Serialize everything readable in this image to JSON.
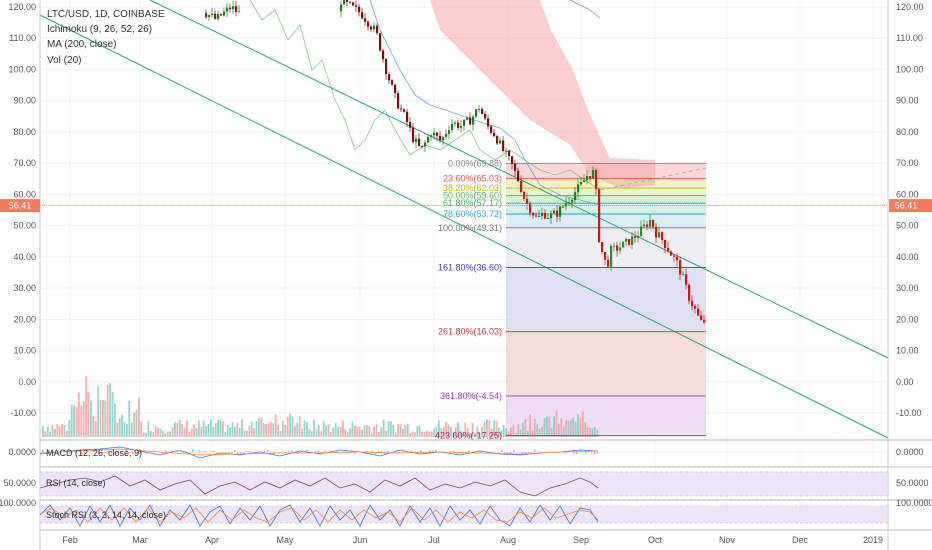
{
  "legend": {
    "symbol": "LTC/USD, 1D, COINBASE",
    "ichimoku": "Ichimoku (9, 26, 52, 26)",
    "ma": "MA (200, close)",
    "vol": "Vol (20)"
  },
  "panes": {
    "macd": "MACD (12, 26, close, 9)",
    "rsi": "RSI (14, close)",
    "stoch": "Stoch RSI (3, 3, 14, 14, close)"
  },
  "pane_ticks": {
    "macd": "0.0000",
    "rsi": "50.0000",
    "stoch": "100.0000"
  },
  "current_price": "56.41",
  "colors": {
    "up": "#26a69a",
    "down": "#ef5350",
    "channel": "#29a37e",
    "cloud": "#f4a6a6",
    "rsi": "#7b3f99",
    "price_line": "#f47c5a"
  },
  "chart_data": {
    "type": "candlestick",
    "symbol": "LTC/USD",
    "timeframe": "1D",
    "exchange": "COINBASE",
    "y_ticks": [
      "120.00",
      "110.00",
      "100.00",
      "90.00",
      "80.00",
      "70.00",
      "60.00",
      "50.00",
      "40.00",
      "30.00",
      "20.00",
      "10.00",
      "0.00",
      "-10.00"
    ],
    "ylim": [
      -17.7,
      122.5
    ],
    "x_ticks": [
      "Feb",
      "Mar",
      "Apr",
      "May",
      "Jun",
      "Jul",
      "Aug",
      "Sep",
      "Oct",
      "Nov",
      "Dec",
      "2019"
    ],
    "fib_levels": [
      {
        "label": "0.00%(69.88)",
        "value": 69.88,
        "color": "#888888"
      },
      {
        "label": "23.60%(65.03)",
        "value": 65.03,
        "color": "#d9534f"
      },
      {
        "label": "38.20%(62.03)",
        "value": 62.03,
        "color": "#b8b800"
      },
      {
        "label": "50.00%(59.60)",
        "value": 59.6,
        "color": "#5cb85c"
      },
      {
        "label": "61.80%(57.17)",
        "value": 57.17,
        "color": "#3aa86a"
      },
      {
        "label": "78.60%(53.72)",
        "value": 53.72,
        "color": "#2aa0c8"
      },
      {
        "label": "100.00%(49.31)",
        "value": 49.31,
        "color": "#777777"
      },
      {
        "label": "161.80%(36.60)",
        "value": 36.6,
        "color": "#3b3bb8"
      },
      {
        "label": "261.80%(16.03)",
        "value": 16.03,
        "color": "#c0392b"
      },
      {
        "label": "361.80%(-4.54)",
        "value": -4.54,
        "color": "#9b30b8"
      },
      {
        "label": "423.60%(-17.25)",
        "value": -17.25,
        "color": "#c2185b"
      }
    ],
    "candles_recent": [
      {
        "date": "Aug 1",
        "close": 66
      },
      {
        "date": "Aug 5",
        "close": 60
      },
      {
        "date": "Aug 10",
        "close": 55
      },
      {
        "date": "Aug 15",
        "close": 54
      },
      {
        "date": "Aug 20",
        "close": 57
      },
      {
        "date": "Aug 25",
        "close": 60
      },
      {
        "date": "Aug 30",
        "close": 63
      },
      {
        "date": "Sep 2",
        "close": 67
      },
      {
        "date": "Sep 4",
        "close": 58
      },
      {
        "date": "Sep 6",
        "close": 42
      },
      {
        "date": "Sep 8",
        "close": 38
      },
      {
        "date": "Sep 12",
        "close": 43
      },
      {
        "date": "Sep 18",
        "close": 46
      },
      {
        "date": "Sep 24",
        "close": 51
      },
      {
        "date": "Sep 30",
        "close": 47
      },
      {
        "date": "Oct 5",
        "close": 40
      },
      {
        "date": "Oct 10",
        "close": 34
      },
      {
        "date": "Oct 14",
        "close": 27
      },
      {
        "date": "Oct 18",
        "close": 20
      },
      {
        "date": "Oct 20",
        "close": 23
      }
    ]
  }
}
